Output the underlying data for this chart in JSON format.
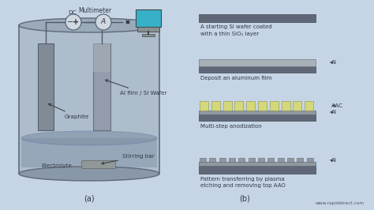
{
  "bg_color": "#c5d5e5",
  "website": "www.rapiddirect.com",
  "label_a": "(a)",
  "label_b": "(b)",
  "left_labels": {
    "dc": "DC",
    "multimeter": "Multimeter",
    "al_film": "Al film / Si Wafer",
    "graphite": "Graphite",
    "stirring": "Stirring bar",
    "electrolyte": "Electrolyte"
  },
  "right_labels": {
    "step1": "A starting Si wafer coated\nwith a thin SiO₂ layer",
    "step2": "Deposit an aluminum film",
    "step3": "Multi-step anodization",
    "step4": "Pattern transferring by plasma\netching and removing top AAO",
    "al": "Al",
    "aac": "AAC"
  },
  "colors": {
    "bg": "#c5d5e5",
    "beaker_wall": "#909aa8",
    "beaker_interior": "#a8b5c2",
    "beaker_liquid": "#8090a0",
    "beaker_edge": "#606878",
    "graphite_plate": "#7a8490",
    "al_plate_top": "#9098a8",
    "al_plate_bottom": "#808898",
    "stirring_bar": "#909898",
    "dark_gray": "#606870",
    "medium_gray": "#9098a0",
    "light_gray": "#a8b0b8",
    "aac_color": "#d4d878",
    "si_color": "#606878",
    "arrow_color": "#303845",
    "text_color": "#303845",
    "monitor_screen": "#38b0c8",
    "monitor_body": "#889090",
    "wire_color": "#505868",
    "dc_circle": "#d0d8e0",
    "am_circle": "#d0d8e0"
  }
}
